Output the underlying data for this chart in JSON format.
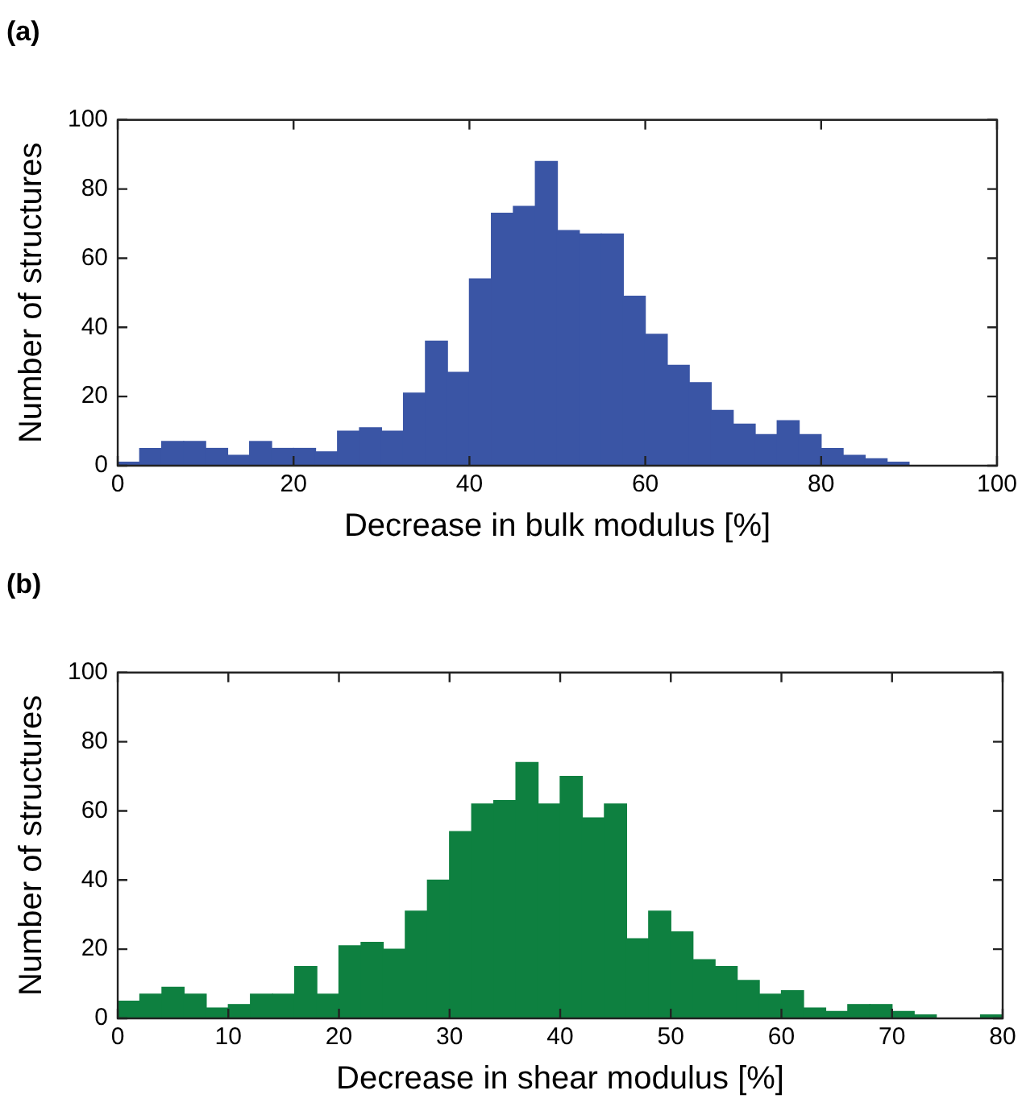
{
  "chart_data": [
    {
      "type": "histogram",
      "title": "(a)",
      "xlabel": "Decrease in bulk modulus [%]",
      "ylabel": "Number of structures",
      "color": "#3a55a5",
      "grid": false,
      "xlim": [
        0,
        100
      ],
      "xticks": [
        0,
        20,
        40,
        60,
        80,
        100
      ],
      "ylim": [
        0,
        100
      ],
      "yticks": [
        0,
        20,
        40,
        60,
        80,
        100
      ],
      "tick_labels": "xy",
      "bins": [
        0,
        2.5,
        5,
        7.5,
        10,
        12.5,
        15,
        17.5,
        20,
        22.5,
        25,
        27.5,
        30,
        32.5,
        35,
        37.5,
        40,
        42.5,
        45,
        47.5,
        50,
        52.5,
        55,
        57.5,
        60,
        62.5,
        65,
        67.5,
        70,
        72.5,
        75,
        77.5,
        80,
        82.5,
        85,
        87.5,
        90,
        92.5,
        95,
        97.5,
        100
      ],
      "values": [
        1,
        5,
        7,
        7,
        5,
        3,
        7,
        5,
        5,
        4,
        10,
        11,
        10,
        21,
        36,
        27,
        54,
        73,
        75,
        88,
        68,
        67,
        67,
        49,
        38,
        29,
        24,
        16,
        12,
        9,
        13,
        9,
        5,
        3,
        2,
        1,
        0,
        0,
        0,
        0
      ]
    },
    {
      "type": "histogram",
      "title": "(b)",
      "xlabel": "Decrease in shear modulus [%]",
      "ylabel": "Number of structures",
      "color": "#0e8040",
      "grid": false,
      "xlim": [
        0,
        80
      ],
      "xticks": [
        0,
        10,
        20,
        30,
        40,
        50,
        60,
        70,
        80
      ],
      "ylim": [
        0,
        100
      ],
      "yticks": [
        0,
        20,
        40,
        60,
        80,
        100
      ],
      "tick_labels": "xy",
      "bins": [
        0,
        2,
        4,
        6,
        8,
        10,
        12,
        14,
        16,
        18,
        20,
        22,
        24,
        26,
        28,
        30,
        32,
        34,
        36,
        38,
        40,
        42,
        44,
        46,
        48,
        50,
        52,
        54,
        56,
        58,
        60,
        62,
        64,
        66,
        68,
        70,
        72,
        74,
        76,
        78,
        80
      ],
      "values": [
        5,
        7,
        9,
        7,
        3,
        4,
        7,
        7,
        15,
        7,
        21,
        22,
        20,
        31,
        40,
        54,
        62,
        63,
        74,
        62,
        70,
        58,
        62,
        23,
        31,
        25,
        17,
        15,
        11,
        7,
        8,
        3,
        2,
        4,
        4,
        2,
        1,
        0,
        0,
        1
      ]
    }
  ]
}
